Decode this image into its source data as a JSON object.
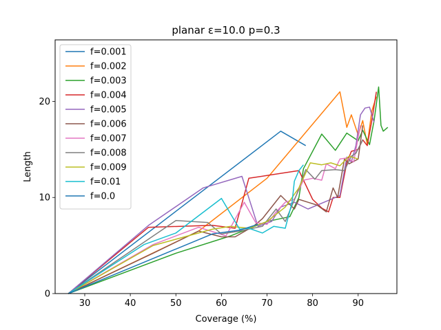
{
  "chart_data": {
    "type": "line",
    "title": "planar ε=10.0 p=0.3",
    "xlabel": "Coverage (%)",
    "ylabel": "Length",
    "xlim": [
      23.5,
      98.5
    ],
    "ylim": [
      0,
      26.4
    ],
    "xticks": [
      30,
      40,
      50,
      60,
      70,
      80,
      90
    ],
    "yticks": [
      0,
      10,
      20
    ],
    "grid": false,
    "legend_position": "top-left",
    "series": [
      {
        "name": "f=0.001",
        "color": "#1f77b4",
        "x": [
          26.4,
          73,
          78.5
        ],
        "y": [
          0,
          16.9,
          15.4
        ]
      },
      {
        "name": "f=0.002",
        "color": "#ff7f0e",
        "x": [
          26.4,
          55,
          70,
          86,
          87.5,
          88.5,
          90,
          91,
          92,
          93,
          94
        ],
        "y": [
          0,
          6.5,
          12,
          21,
          17.3,
          18.6,
          16.5,
          18,
          15.5,
          19,
          20.5
        ]
      },
      {
        "name": "f=0.003",
        "color": "#2ca02c",
        "x": [
          26.4,
          50,
          62,
          70,
          75,
          77,
          78,
          82,
          85,
          87.5,
          90,
          91,
          92.5,
          93.5,
          94.5,
          95,
          95.5,
          96.5
        ],
        "y": [
          0,
          4.2,
          6,
          7.5,
          8,
          10,
          13,
          16.6,
          14.9,
          16.7,
          15.9,
          17,
          15.5,
          18,
          21.5,
          17.5,
          16.9,
          17.3
        ]
      },
      {
        "name": "f=0.004",
        "color": "#d62728",
        "x": [
          26.4,
          44,
          58,
          63,
          66,
          77,
          80,
          82,
          83.5,
          84.5,
          86,
          87.5,
          88.5,
          90,
          91,
          92,
          93,
          94
        ],
        "y": [
          0,
          6.9,
          7.1,
          6.8,
          12,
          12.8,
          9.8,
          8.9,
          8.5,
          10,
          10,
          13.6,
          14.8,
          15,
          16,
          15.4,
          18,
          21
        ]
      },
      {
        "name": "f=0.005",
        "color": "#9467bd",
        "x": [
          26.4,
          44,
          56,
          64.5,
          68,
          71,
          73,
          76,
          79,
          83,
          86,
          87.5,
          88.5,
          89.5,
          90.5,
          91.5,
          92.5,
          93.5
        ],
        "y": [
          0,
          7.1,
          11,
          12.2,
          7,
          7.5,
          9,
          9.5,
          8.8,
          9.6,
          10.2,
          14.2,
          13.7,
          15.4,
          18.6,
          19.3,
          19.4,
          17.8
        ]
      },
      {
        "name": "f=0.006",
        "color": "#8c564b",
        "x": [
          26.4,
          45,
          55,
          60,
          63,
          67,
          69,
          73,
          76,
          77,
          79,
          81,
          83,
          84.5,
          85.5,
          87,
          88,
          90,
          91
        ],
        "y": [
          0,
          4.2,
          6.5,
          5.9,
          5.9,
          7,
          7.8,
          10.2,
          8.8,
          9.8,
          9.5,
          9.2,
          8.5,
          11,
          10,
          14,
          13.5,
          14,
          17.5
        ]
      },
      {
        "name": "f=0.007",
        "color": "#e377c2",
        "x": [
          26.4,
          45,
          55,
          61,
          65,
          67.5,
          70,
          72,
          74,
          76,
          78,
          80,
          82,
          83,
          85,
          86,
          87.5,
          89,
          90.5
        ],
        "y": [
          0,
          5.1,
          6.9,
          6,
          9.5,
          7.4,
          7.2,
          8.5,
          9.5,
          9.8,
          11.8,
          12,
          11.8,
          13.5,
          13,
          14,
          14.1,
          13.7,
          17.5
        ]
      },
      {
        "name": "f=0.008",
        "color": "#7f7f7f",
        "x": [
          26.4,
          50,
          57,
          60,
          64,
          69,
          72,
          74,
          76.5,
          78.5,
          80.5,
          82,
          85,
          87,
          88.5,
          89.5,
          91
        ],
        "y": [
          0,
          7.6,
          7.4,
          6.2,
          6.5,
          7,
          8.8,
          7.5,
          10.3,
          12.9,
          11.9,
          12.8,
          12.9,
          12.8,
          14.3,
          14.6,
          16
        ]
      },
      {
        "name": "f=0.009",
        "color": "#bcbd22",
        "x": [
          26.4,
          45,
          58,
          62,
          66,
          70,
          74,
          77,
          79.5,
          82,
          84,
          86,
          88,
          90
        ],
        "y": [
          0,
          5,
          6.7,
          7,
          6.8,
          7.5,
          9,
          11,
          13.6,
          13.4,
          13.6,
          13.3,
          14.3,
          14
        ]
      },
      {
        "name": "f=0.01",
        "color": "#17becf",
        "x": [
          26.4,
          43,
          50,
          60,
          64,
          66,
          69,
          71.5,
          74,
          75.5,
          76,
          77,
          78
        ],
        "y": [
          0,
          5.1,
          6.3,
          9.9,
          6.7,
          6.8,
          6.3,
          7,
          6.8,
          9.5,
          11.7,
          12.8,
          13.4
        ]
      },
      {
        "name": "f=0.0",
        "color": "#1f77b4",
        "x": [
          26.4,
          58,
          64,
          68
        ],
        "y": [
          0,
          6.2,
          6.6,
          7.2
        ]
      }
    ]
  }
}
